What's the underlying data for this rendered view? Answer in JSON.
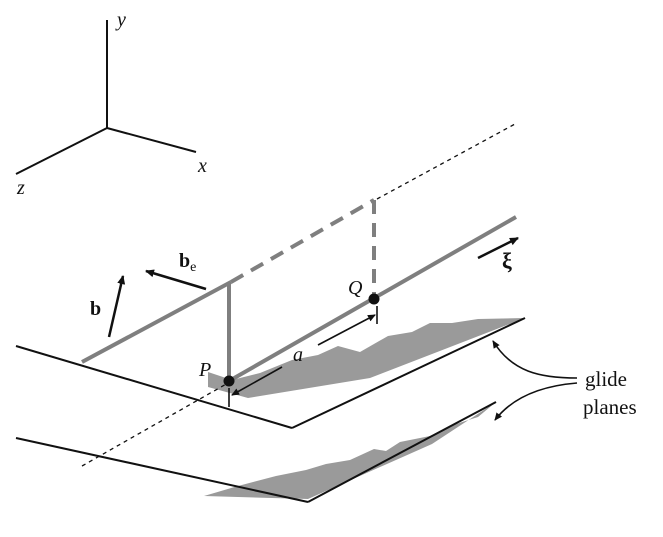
{
  "axes": {
    "x_label": "x",
    "y_label": "y",
    "z_label": "z"
  },
  "vectors": {
    "burgers": "b",
    "burgers_edge": "b",
    "burgers_edge_subscript": "e",
    "line_direction": "ξ"
  },
  "points": {
    "p_label": "P",
    "q_label": "Q"
  },
  "distance_label": "a",
  "annotation": {
    "line1": "glide",
    "line2": "planes"
  },
  "colors": {
    "dislocation_gray": "#7f7f7f",
    "glide_fill": "#9a9a9a",
    "ink": "#111111"
  }
}
